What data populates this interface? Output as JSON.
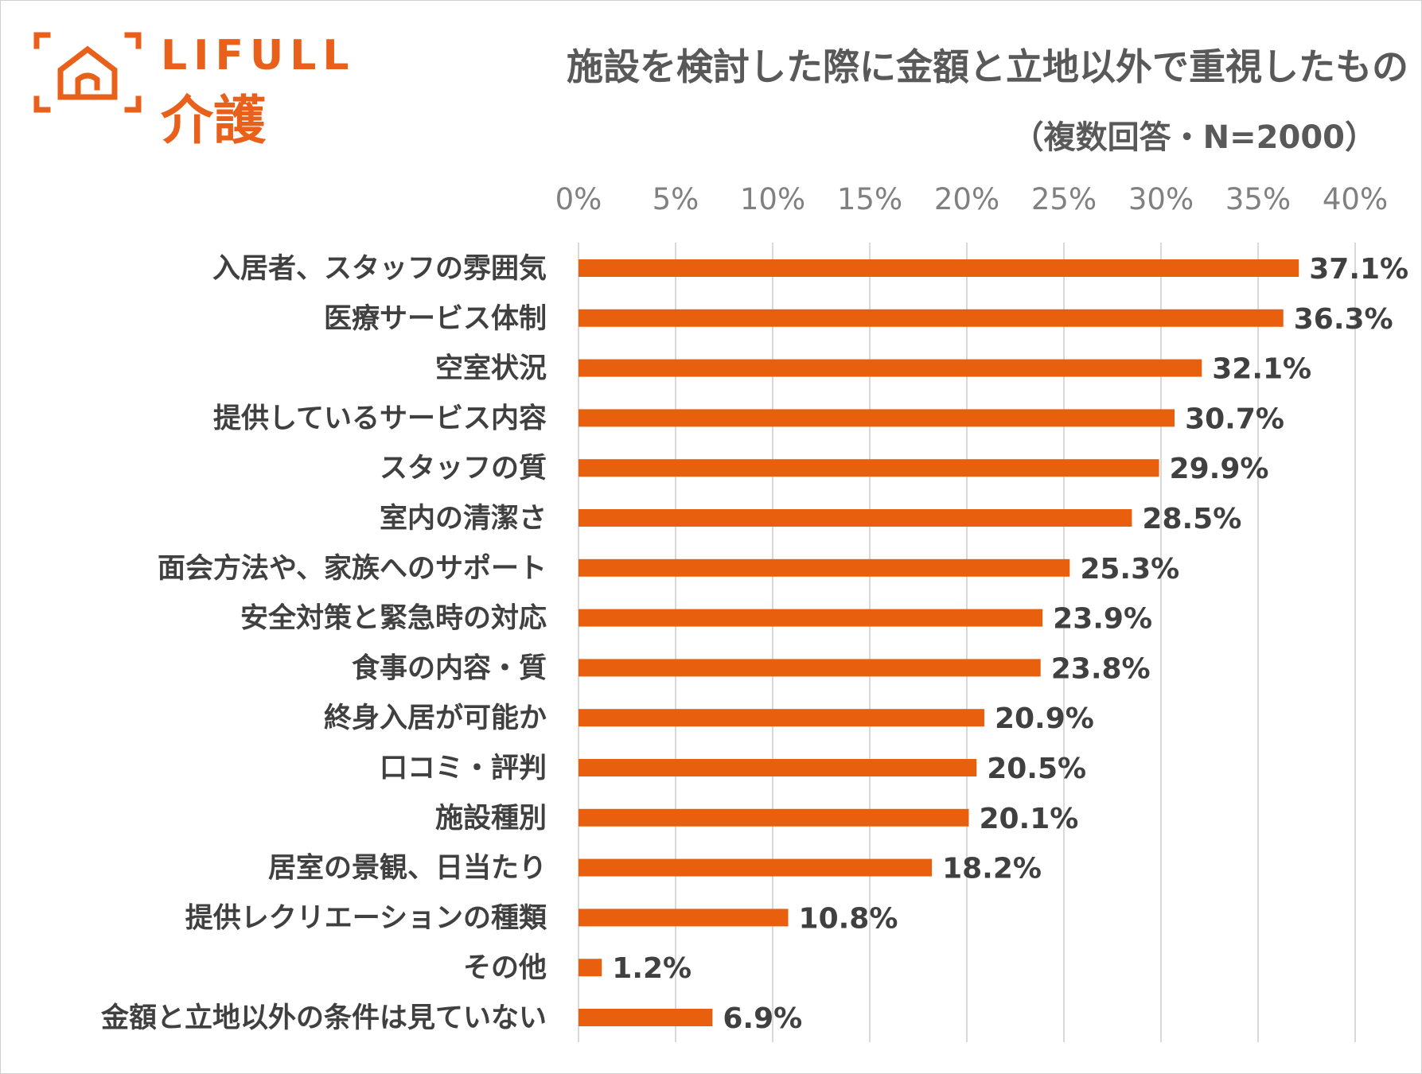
{
  "brand": {
    "name": "LIFULL",
    "sub": "介護",
    "color": "#e8601a"
  },
  "chart_data": {
    "type": "bar",
    "orientation": "horizontal",
    "title": "施設を検討した際に金額と立地以外で重視したもの",
    "subtitle": "（複数回答・N=2000）",
    "categories": [
      "入居者、スタッフの雰囲気",
      "医療サービス体制",
      "空室状況",
      "提供しているサービス内容",
      "スタッフの質",
      "室内の清潔さ",
      "面会方法や、家族へのサポート",
      "安全対策と緊急時の対応",
      "食事の内容・質",
      "終身入居が可能か",
      "口コミ・評判",
      "施設種別",
      "居室の景観、日当たり",
      "提供レクリエーションの種類",
      "その他",
      "金額と立地以外の条件は見ていない"
    ],
    "values": [
      37.1,
      36.3,
      32.1,
      30.7,
      29.9,
      28.5,
      25.3,
      23.9,
      23.8,
      20.9,
      20.5,
      20.1,
      18.2,
      10.8,
      1.2,
      6.9
    ],
    "value_labels": [
      "37.1%",
      "36.3%",
      "32.1%",
      "30.7%",
      "29.9%",
      "28.5%",
      "25.3%",
      "23.9%",
      "23.8%",
      "20.9%",
      "20.5%",
      "20.1%",
      "18.2%",
      "10.8%",
      "1.2%",
      "6.9%"
    ],
    "xlim": [
      0,
      40
    ],
    "x_ticks": [
      0,
      5,
      10,
      15,
      20,
      25,
      30,
      35,
      40
    ],
    "x_tick_labels": [
      "0%",
      "5%",
      "10%",
      "15%",
      "20%",
      "25%",
      "30%",
      "35%",
      "40%"
    ],
    "axis_position": "top",
    "grid": true,
    "bar_color": "#e8600e",
    "grid_color": "#d9d9d9"
  }
}
